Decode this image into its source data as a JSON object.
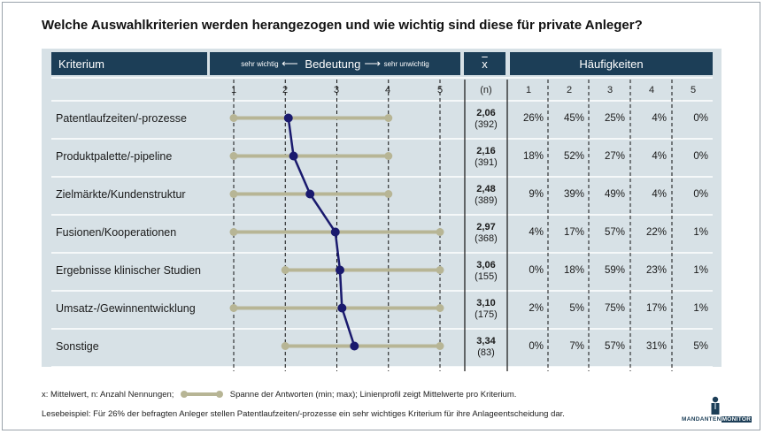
{
  "title": "Welche Auswahlkriterien werden herangezogen und wie wichtig sind diese für private Anleger?",
  "header": {
    "kriterium": "Kriterium",
    "sehr_wichtig": "sehr wichtig",
    "bedeutung": "Bedeutung",
    "sehr_unwichtig": "sehr unwichtig",
    "mean_symbol": "x",
    "haeufigkeiten": "Häufigkeiten",
    "n_label": "(n)",
    "scale": [
      "1",
      "2",
      "3",
      "4",
      "5"
    ],
    "freq_cols": [
      "1",
      "2",
      "3",
      "4",
      "5"
    ]
  },
  "chart_data": {
    "type": "table",
    "xlim": [
      1,
      5
    ],
    "rows": [
      {
        "kriterium": "Patentlaufzeiten/-prozesse",
        "min": 1,
        "max": 4,
        "mean": 2.06,
        "mean_text": "2,06",
        "n_text": "(392)",
        "freq": [
          "26%",
          "45%",
          "25%",
          "4%",
          "0%"
        ]
      },
      {
        "kriterium": "Produktpalette/-pipeline",
        "min": 1,
        "max": 4,
        "mean": 2.16,
        "mean_text": "2,16",
        "n_text": "(391)",
        "freq": [
          "18%",
          "52%",
          "27%",
          "4%",
          "0%"
        ]
      },
      {
        "kriterium": "Zielmärkte/Kundenstruktur",
        "min": 1,
        "max": 4,
        "mean": 2.48,
        "mean_text": "2,48",
        "n_text": "(389)",
        "freq": [
          "9%",
          "39%",
          "49%",
          "4%",
          "0%"
        ]
      },
      {
        "kriterium": "Fusionen/Kooperationen",
        "min": 1,
        "max": 5,
        "mean": 2.97,
        "mean_text": "2,97",
        "n_text": "(368)",
        "freq": [
          "4%",
          "17%",
          "57%",
          "22%",
          "1%"
        ]
      },
      {
        "kriterium": "Ergebnisse klinischer Studien",
        "min": 2,
        "max": 5,
        "mean": 3.06,
        "mean_text": "3,06",
        "n_text": "(155)",
        "freq": [
          "0%",
          "18%",
          "59%",
          "23%",
          "1%"
        ]
      },
      {
        "kriterium": "Umsatz-/Gewinnentwicklung",
        "min": 1,
        "max": 5,
        "mean": 3.1,
        "mean_text": "3,10",
        "n_text": "(175)",
        "freq": [
          "2%",
          "5%",
          "75%",
          "17%",
          "1%"
        ]
      },
      {
        "kriterium": "Sonstige",
        "min": 2,
        "max": 5,
        "mean": 3.34,
        "mean_text": "3,34",
        "n_text": "(83)",
        "freq": [
          "0%",
          "7%",
          "57%",
          "31%",
          "5%"
        ]
      }
    ]
  },
  "footer": {
    "line1_pre": "x: Mittelwert, n: Anzahl Nennungen;",
    "line1_post": "Spanne der Antworten (min; max); Linienprofil zeigt Mittelwerte pro Kriterium.",
    "line2": "Lesebeispiel: Für 26% der befragten Anleger stellen Patentlaufzeiten/-prozesse ein sehr wichtiges Kriterium für ihre Anlageentscheidung dar."
  },
  "logo": {
    "part1": "MANDANTEN",
    "part2": "MONITOR"
  },
  "colors": {
    "header_bg": "#1c3e57",
    "panel_bg": "#d7e1e6",
    "range_line": "#b7b595",
    "mean_dot": "#1a1a6e"
  }
}
